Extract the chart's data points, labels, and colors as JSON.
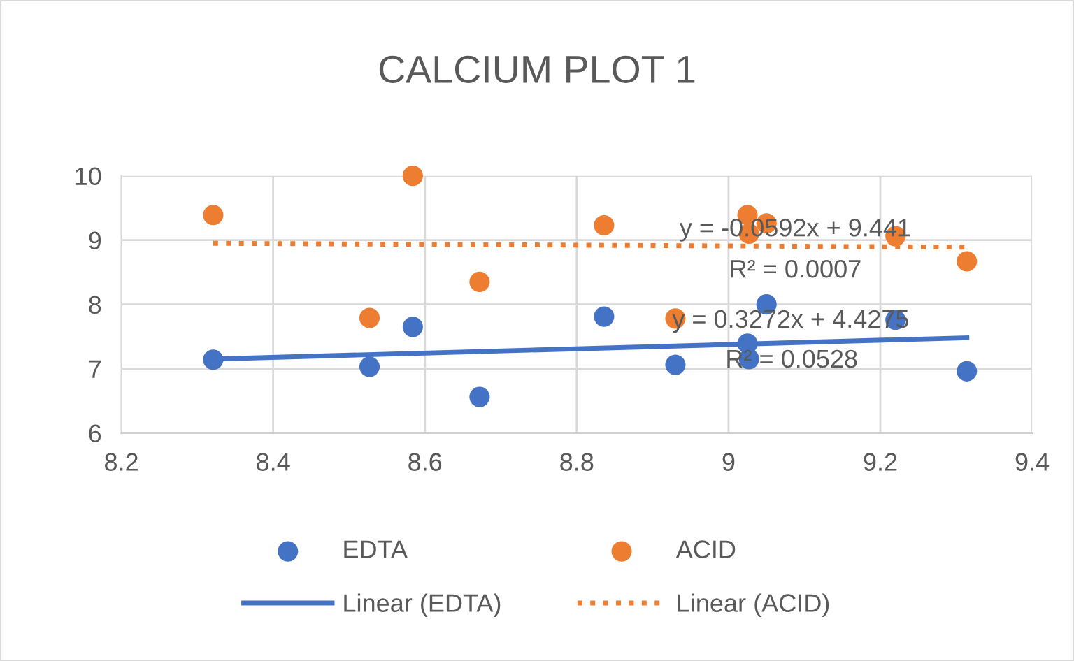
{
  "chart_data": {
    "type": "scatter",
    "title": "CALCIUM PLOT 1",
    "series": [
      {
        "name": "EDTA",
        "marker": "circle",
        "color": "#4472c4",
        "x": [
          8.321,
          8.527,
          8.584,
          8.672,
          8.836,
          8.93,
          9.025,
          9.027,
          9.05,
          9.22,
          9.314
        ],
        "values": [
          7.14,
          7.03,
          7.65,
          6.56,
          7.81,
          7.06,
          7.39,
          7.15,
          8.0,
          7.76,
          6.96
        ]
      },
      {
        "name": "ACID",
        "marker": "circle",
        "color": "#ed7d31",
        "x": [
          8.321,
          8.527,
          8.584,
          8.672,
          8.836,
          8.93,
          9.025,
          9.027,
          9.05,
          9.22,
          9.314
        ],
        "values": [
          9.39,
          7.79,
          10.0,
          8.35,
          9.23,
          7.78,
          9.39,
          9.1,
          9.26,
          9.06,
          8.67
        ]
      },
      {
        "name": "Linear (EDTA)",
        "type": "line",
        "line_style": "solid",
        "color": "#4472c4",
        "x": [
          8.321,
          9.314
        ],
        "values": [
          7.15,
          7.48
        ]
      },
      {
        "name": "Linear (ACID)",
        "type": "line",
        "line_style": "dotted",
        "color": "#ed7d31",
        "x": [
          8.321,
          9.314
        ],
        "values": [
          8.95,
          8.89
        ]
      }
    ],
    "annotations": [
      "y = -0.0592x + 9.441",
      "R² = 0.0007",
      "y = 0.3272x + 4.4275",
      "R² = 0.0528"
    ],
    "xlim": [
      8.2,
      9.4
    ],
    "xticks": [
      8.2,
      8.4,
      8.6,
      8.8,
      9,
      9.2,
      9.4
    ],
    "ylim": [
      6,
      10
    ],
    "yticks": [
      6,
      7,
      8,
      9,
      10
    ],
    "grid": true,
    "legend": "bottom"
  }
}
